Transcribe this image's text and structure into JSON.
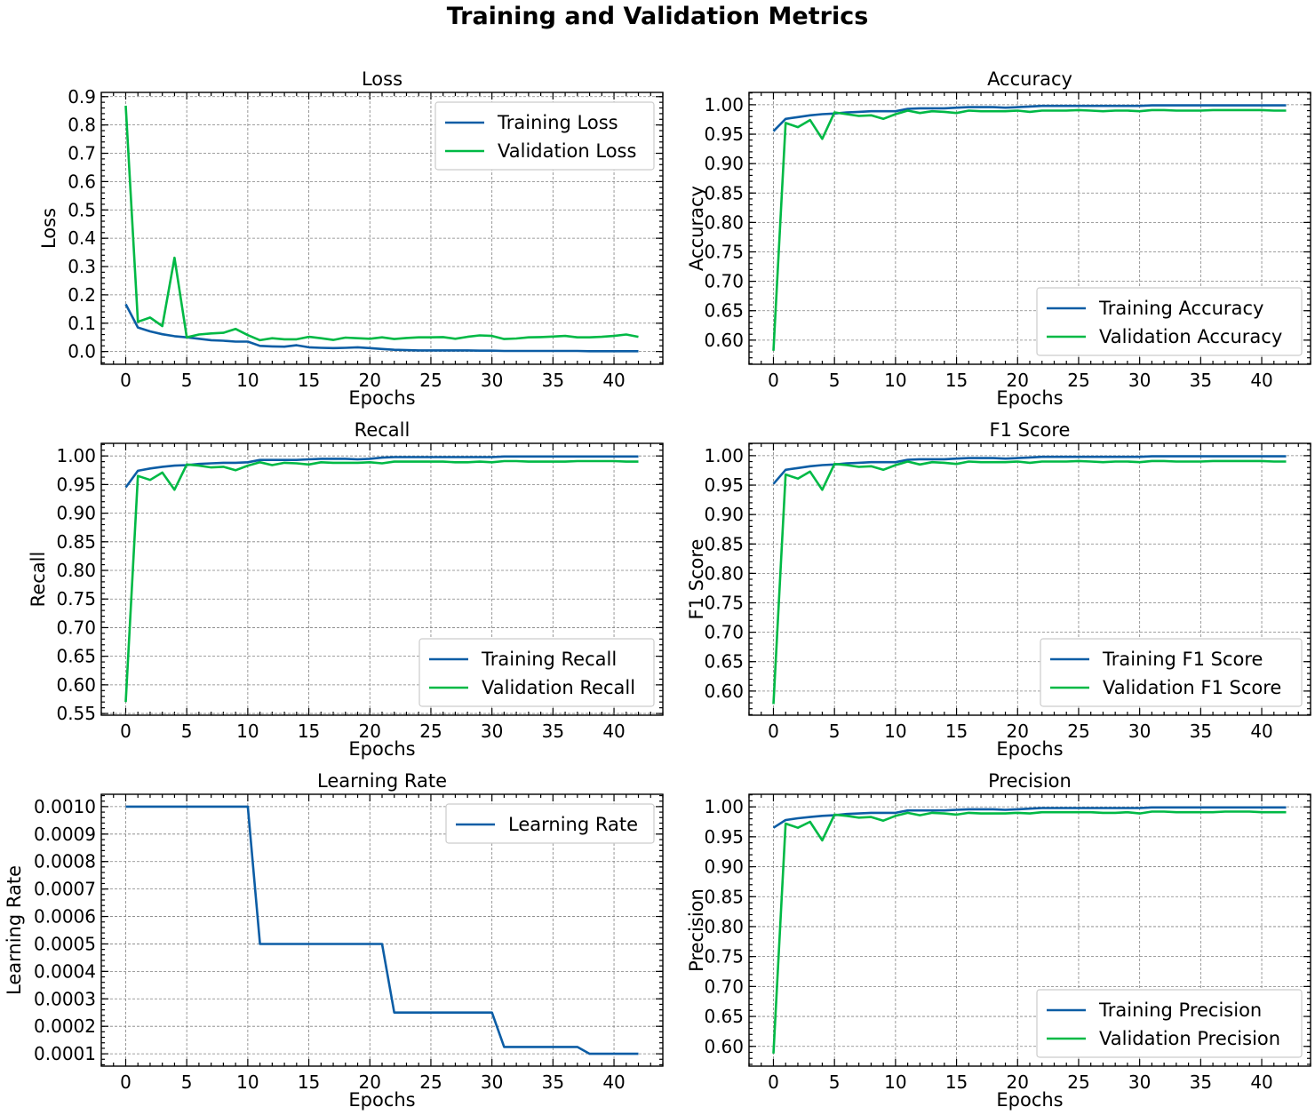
{
  "figure": {
    "title": "Training and Validation Metrics",
    "colors": {
      "train": "#0C5DA5",
      "val": "#00B945"
    }
  },
  "chart_data": [
    {
      "id": "loss",
      "type": "line",
      "title": "Loss",
      "xlabel": "Epochs",
      "ylabel": "Loss",
      "xlim": [
        -2,
        44
      ],
      "ylim": [
        -0.045,
        0.915
      ],
      "xticks": [
        0,
        5,
        10,
        15,
        20,
        25,
        30,
        35,
        40
      ],
      "yticks": [
        "0.0",
        "0.1",
        "0.2",
        "0.3",
        "0.4",
        "0.5",
        "0.6",
        "0.7",
        "0.8",
        "0.9"
      ],
      "legend": "top-right",
      "grid": true,
      "x": [
        0,
        1,
        2,
        3,
        4,
        5,
        6,
        7,
        8,
        9,
        10,
        11,
        12,
        13,
        14,
        15,
        16,
        17,
        18,
        19,
        20,
        21,
        22,
        23,
        24,
        25,
        26,
        27,
        28,
        29,
        30,
        31,
        32,
        33,
        34,
        35,
        36,
        37,
        38,
        39,
        40,
        41,
        42
      ],
      "series": [
        {
          "name": "Training Loss",
          "color": "#0C5DA5",
          "values": [
            0.167,
            0.085,
            0.071,
            0.061,
            0.054,
            0.05,
            0.045,
            0.04,
            0.038,
            0.035,
            0.035,
            0.02,
            0.018,
            0.017,
            0.022,
            0.015,
            0.013,
            0.012,
            0.013,
            0.015,
            0.012,
            0.009,
            0.006,
            0.005,
            0.004,
            0.004,
            0.004,
            0.004,
            0.004,
            0.003,
            0.003,
            0.002,
            0.002,
            0.002,
            0.002,
            0.002,
            0.002,
            0.002,
            0.001,
            0.001,
            0.001,
            0.001,
            0.001
          ]
        },
        {
          "name": "Validation Loss",
          "color": "#00B945",
          "values": [
            0.868,
            0.105,
            0.12,
            0.09,
            0.331,
            0.05,
            0.06,
            0.064,
            0.066,
            0.08,
            0.058,
            0.04,
            0.047,
            0.043,
            0.043,
            0.052,
            0.047,
            0.041,
            0.049,
            0.047,
            0.045,
            0.05,
            0.044,
            0.048,
            0.05,
            0.05,
            0.051,
            0.045,
            0.052,
            0.057,
            0.055,
            0.044,
            0.046,
            0.05,
            0.051,
            0.053,
            0.055,
            0.05,
            0.05,
            0.052,
            0.055,
            0.06,
            0.052
          ]
        }
      ]
    },
    {
      "id": "accuracy",
      "type": "line",
      "title": "Accuracy",
      "xlabel": "Epochs",
      "ylabel": "Accuracy",
      "xlim": [
        -2,
        44
      ],
      "ylim": [
        0.559,
        1.021
      ],
      "xticks": [
        0,
        5,
        10,
        15,
        20,
        25,
        30,
        35,
        40
      ],
      "yticks": [
        "0.60",
        "0.65",
        "0.70",
        "0.75",
        "0.80",
        "0.85",
        "0.90",
        "0.95",
        "1.00"
      ],
      "legend": "bottom-right",
      "grid": true,
      "x": [
        0,
        1,
        2,
        3,
        4,
        5,
        6,
        7,
        8,
        9,
        10,
        11,
        12,
        13,
        14,
        15,
        16,
        17,
        18,
        19,
        20,
        21,
        22,
        23,
        24,
        25,
        26,
        27,
        28,
        29,
        30,
        31,
        32,
        33,
        34,
        35,
        36,
        37,
        38,
        39,
        40,
        41,
        42
      ],
      "series": [
        {
          "name": "Training Accuracy",
          "color": "#0C5DA5",
          "values": [
            0.955,
            0.976,
            0.979,
            0.982,
            0.984,
            0.985,
            0.987,
            0.988,
            0.989,
            0.989,
            0.989,
            0.993,
            0.994,
            0.994,
            0.994,
            0.995,
            0.996,
            0.996,
            0.996,
            0.995,
            0.996,
            0.997,
            0.998,
            0.998,
            0.998,
            0.998,
            0.998,
            0.998,
            0.998,
            0.998,
            0.998,
            0.999,
            0.999,
            0.999,
            0.999,
            0.999,
            0.999,
            0.999,
            0.999,
            0.999,
            0.999,
            0.999,
            0.999
          ]
        },
        {
          "name": "Validation Accuracy",
          "color": "#00B945",
          "values": [
            0.582,
            0.969,
            0.962,
            0.974,
            0.942,
            0.987,
            0.984,
            0.981,
            0.982,
            0.976,
            0.984,
            0.99,
            0.986,
            0.989,
            0.988,
            0.986,
            0.99,
            0.989,
            0.989,
            0.989,
            0.99,
            0.988,
            0.99,
            0.99,
            0.99,
            0.991,
            0.99,
            0.989,
            0.99,
            0.99,
            0.989,
            0.991,
            0.991,
            0.99,
            0.99,
            0.99,
            0.991,
            0.991,
            0.991,
            0.991,
            0.991,
            0.99,
            0.99
          ]
        }
      ]
    },
    {
      "id": "recall",
      "type": "line",
      "title": "Recall",
      "xlabel": "Epochs",
      "ylabel": "Recall",
      "xlim": [
        -2,
        44
      ],
      "ylim": [
        0.547,
        1.022
      ],
      "xticks": [
        0,
        5,
        10,
        15,
        20,
        25,
        30,
        35,
        40
      ],
      "yticks": [
        "0.55",
        "0.60",
        "0.65",
        "0.70",
        "0.75",
        "0.80",
        "0.85",
        "0.90",
        "0.95",
        "1.00"
      ],
      "legend": "bottom-right",
      "grid": true,
      "x": [
        0,
        1,
        2,
        3,
        4,
        5,
        6,
        7,
        8,
        9,
        10,
        11,
        12,
        13,
        14,
        15,
        16,
        17,
        18,
        19,
        20,
        21,
        22,
        23,
        24,
        25,
        26,
        27,
        28,
        29,
        30,
        31,
        32,
        33,
        34,
        35,
        36,
        37,
        38,
        39,
        40,
        41,
        42
      ],
      "series": [
        {
          "name": "Training Recall",
          "color": "#0C5DA5",
          "values": [
            0.945,
            0.974,
            0.978,
            0.981,
            0.983,
            0.984,
            0.986,
            0.987,
            0.988,
            0.988,
            0.989,
            0.993,
            0.993,
            0.993,
            0.993,
            0.994,
            0.995,
            0.995,
            0.995,
            0.994,
            0.995,
            0.997,
            0.998,
            0.998,
            0.998,
            0.998,
            0.998,
            0.998,
            0.998,
            0.998,
            0.998,
            0.999,
            0.999,
            0.999,
            0.999,
            0.999,
            0.999,
            0.999,
            0.999,
            0.999,
            0.999,
            0.999,
            0.999
          ]
        },
        {
          "name": "Validation Recall",
          "color": "#00B945",
          "values": [
            0.57,
            0.965,
            0.958,
            0.971,
            0.941,
            0.985,
            0.983,
            0.98,
            0.981,
            0.975,
            0.983,
            0.989,
            0.984,
            0.988,
            0.987,
            0.985,
            0.989,
            0.988,
            0.988,
            0.988,
            0.989,
            0.987,
            0.99,
            0.99,
            0.99,
            0.99,
            0.99,
            0.989,
            0.989,
            0.99,
            0.989,
            0.991,
            0.991,
            0.99,
            0.99,
            0.99,
            0.99,
            0.991,
            0.991,
            0.991,
            0.991,
            0.99,
            0.99
          ]
        }
      ]
    },
    {
      "id": "f1",
      "type": "line",
      "title": "F1 Score",
      "xlabel": "Epochs",
      "ylabel": "F1 Score",
      "xlim": [
        -2,
        44
      ],
      "ylim": [
        0.559,
        1.021
      ],
      "xticks": [
        0,
        5,
        10,
        15,
        20,
        25,
        30,
        35,
        40
      ],
      "yticks": [
        "0.60",
        "0.65",
        "0.70",
        "0.75",
        "0.80",
        "0.85",
        "0.90",
        "0.95",
        "1.00"
      ],
      "legend": "bottom-right",
      "grid": true,
      "x": [
        0,
        1,
        2,
        3,
        4,
        5,
        6,
        7,
        8,
        9,
        10,
        11,
        12,
        13,
        14,
        15,
        16,
        17,
        18,
        19,
        20,
        21,
        22,
        23,
        24,
        25,
        26,
        27,
        28,
        29,
        30,
        31,
        32,
        33,
        34,
        35,
        36,
        37,
        38,
        39,
        40,
        41,
        42
      ],
      "series": [
        {
          "name": "Training F1 Score",
          "color": "#0C5DA5",
          "values": [
            0.952,
            0.976,
            0.979,
            0.982,
            0.984,
            0.985,
            0.987,
            0.988,
            0.989,
            0.989,
            0.989,
            0.993,
            0.994,
            0.994,
            0.994,
            0.995,
            0.996,
            0.996,
            0.996,
            0.995,
            0.996,
            0.997,
            0.998,
            0.998,
            0.998,
            0.998,
            0.998,
            0.998,
            0.998,
            0.998,
            0.998,
            0.999,
            0.999,
            0.999,
            0.999,
            0.999,
            0.999,
            0.999,
            0.999,
            0.999,
            0.999,
            0.999,
            0.999
          ]
        },
        {
          "name": "Validation F1 Score",
          "color": "#00B945",
          "values": [
            0.578,
            0.968,
            0.961,
            0.973,
            0.942,
            0.986,
            0.984,
            0.981,
            0.982,
            0.976,
            0.984,
            0.99,
            0.985,
            0.989,
            0.988,
            0.986,
            0.99,
            0.989,
            0.989,
            0.989,
            0.99,
            0.988,
            0.99,
            0.99,
            0.99,
            0.991,
            0.99,
            0.989,
            0.99,
            0.99,
            0.989,
            0.991,
            0.991,
            0.99,
            0.99,
            0.99,
            0.991,
            0.991,
            0.991,
            0.991,
            0.991,
            0.99,
            0.99
          ]
        }
      ]
    },
    {
      "id": "lr",
      "type": "line",
      "title": "Learning Rate",
      "xlabel": "Epochs",
      "ylabel": "Learning Rate",
      "xlim": [
        -2,
        44
      ],
      "ylim": [
        5.5e-05,
        0.001045
      ],
      "xticks": [
        0,
        5,
        10,
        15,
        20,
        25,
        30,
        35,
        40
      ],
      "yticks": [
        "0.0001",
        "0.0002",
        "0.0003",
        "0.0004",
        "0.0005",
        "0.0006",
        "0.0007",
        "0.0008",
        "0.0009",
        "0.0010"
      ],
      "legend": "top-right",
      "grid": true,
      "x": [
        0,
        1,
        2,
        3,
        4,
        5,
        6,
        7,
        8,
        9,
        10,
        11,
        12,
        13,
        14,
        15,
        16,
        17,
        18,
        19,
        20,
        21,
        22,
        23,
        24,
        25,
        26,
        27,
        28,
        29,
        30,
        31,
        32,
        33,
        34,
        35,
        36,
        37,
        38,
        39,
        40,
        41,
        42
      ],
      "series": [
        {
          "name": "Learning Rate",
          "color": "#0C5DA5",
          "values": [
            0.001,
            0.001,
            0.001,
            0.001,
            0.001,
            0.001,
            0.001,
            0.001,
            0.001,
            0.001,
            0.001,
            0.0005,
            0.0005,
            0.0005,
            0.0005,
            0.0005,
            0.0005,
            0.0005,
            0.0005,
            0.0005,
            0.0005,
            0.0005,
            0.00025,
            0.00025,
            0.00025,
            0.00025,
            0.00025,
            0.00025,
            0.00025,
            0.00025,
            0.00025,
            0.000125,
            0.000125,
            0.000125,
            0.000125,
            0.000125,
            0.000125,
            0.000125,
            0.0001,
            0.0001,
            0.0001,
            0.0001,
            0.0001
          ]
        }
      ]
    },
    {
      "id": "precision",
      "type": "line",
      "title": "Precision",
      "xlabel": "Epochs",
      "ylabel": "Precision",
      "xlim": [
        -2,
        44
      ],
      "ylim": [
        0.567,
        1.021
      ],
      "xticks": [
        0,
        5,
        10,
        15,
        20,
        25,
        30,
        35,
        40
      ],
      "yticks": [
        "0.60",
        "0.65",
        "0.70",
        "0.75",
        "0.80",
        "0.85",
        "0.90",
        "0.95",
        "1.00"
      ],
      "legend": "bottom-right",
      "grid": true,
      "x": [
        0,
        1,
        2,
        3,
        4,
        5,
        6,
        7,
        8,
        9,
        10,
        11,
        12,
        13,
        14,
        15,
        16,
        17,
        18,
        19,
        20,
        21,
        22,
        23,
        24,
        25,
        26,
        27,
        28,
        29,
        30,
        31,
        32,
        33,
        34,
        35,
        36,
        37,
        38,
        39,
        40,
        41,
        42
      ],
      "series": [
        {
          "name": "Training Precision",
          "color": "#0C5DA5",
          "values": [
            0.965,
            0.978,
            0.981,
            0.983,
            0.985,
            0.986,
            0.988,
            0.989,
            0.99,
            0.99,
            0.99,
            0.994,
            0.994,
            0.994,
            0.994,
            0.995,
            0.996,
            0.996,
            0.996,
            0.995,
            0.996,
            0.997,
            0.998,
            0.998,
            0.998,
            0.998,
            0.998,
            0.998,
            0.998,
            0.998,
            0.998,
            0.999,
            0.999,
            0.999,
            0.999,
            0.999,
            0.999,
            0.999,
            0.999,
            0.999,
            0.999,
            0.999,
            0.999
          ]
        },
        {
          "name": "Validation Precision",
          "color": "#00B945",
          "values": [
            0.588,
            0.972,
            0.965,
            0.975,
            0.944,
            0.987,
            0.985,
            0.982,
            0.983,
            0.977,
            0.985,
            0.99,
            0.986,
            0.99,
            0.989,
            0.987,
            0.99,
            0.989,
            0.989,
            0.989,
            0.99,
            0.989,
            0.991,
            0.991,
            0.991,
            0.991,
            0.991,
            0.99,
            0.99,
            0.991,
            0.989,
            0.992,
            0.992,
            0.991,
            0.991,
            0.991,
            0.991,
            0.992,
            0.992,
            0.992,
            0.991,
            0.991,
            0.991
          ]
        }
      ]
    }
  ]
}
